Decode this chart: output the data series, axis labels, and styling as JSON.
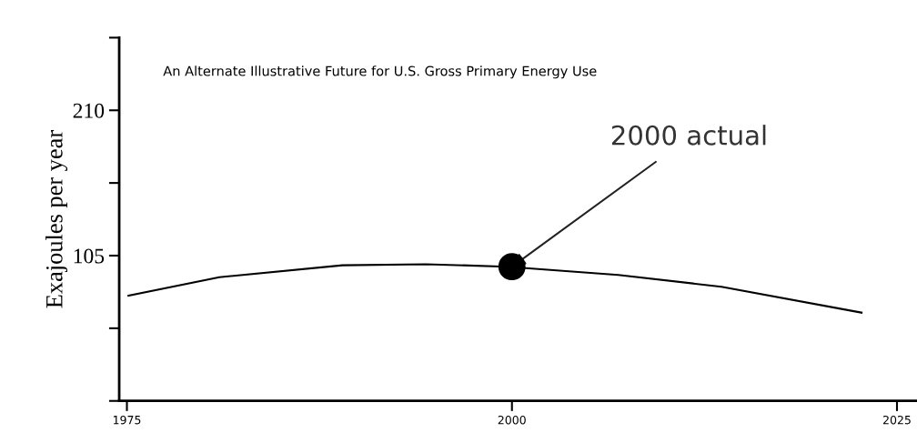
{
  "chart_data": {
    "type": "line",
    "title": "An Alternate Illustrative Future for U.S. Gross Primary Energy Use",
    "ylabel": "Exajoules per year",
    "x": [
      1975.1,
      1981,
      1989,
      1994.4,
      1999.7,
      2006.9,
      2013.6,
      2022.7
    ],
    "series": [
      {
        "color": "#000000",
        "marker": "none",
        "values": [
          76,
          89.4,
          98,
          98.8,
          97,
          91,
          82.5,
          63.8
        ]
      },
      {
        "type": "scatter",
        "color": "#000000",
        "marker": "circle",
        "x": [
          2000
        ],
        "values": [
          97
        ]
      }
    ],
    "annotations": [
      {
        "text": "2000 actual",
        "x": 2000,
        "y": 97
      }
    ],
    "xlim": [
      1974.5,
      2026.3
    ],
    "xticks": [
      1975,
      2000,
      2025
    ],
    "ylim": [
      0,
      262.5
    ],
    "yticks": [
      {
        "value": 0,
        "label": null
      },
      {
        "value": 52.5,
        "label": null
      },
      105,
      {
        "value": 157.5,
        "label": null
      },
      210,
      {
        "value": 262.5,
        "label": null
      }
    ],
    "grid": false,
    "legend": false,
    "line_style": "solid"
  }
}
